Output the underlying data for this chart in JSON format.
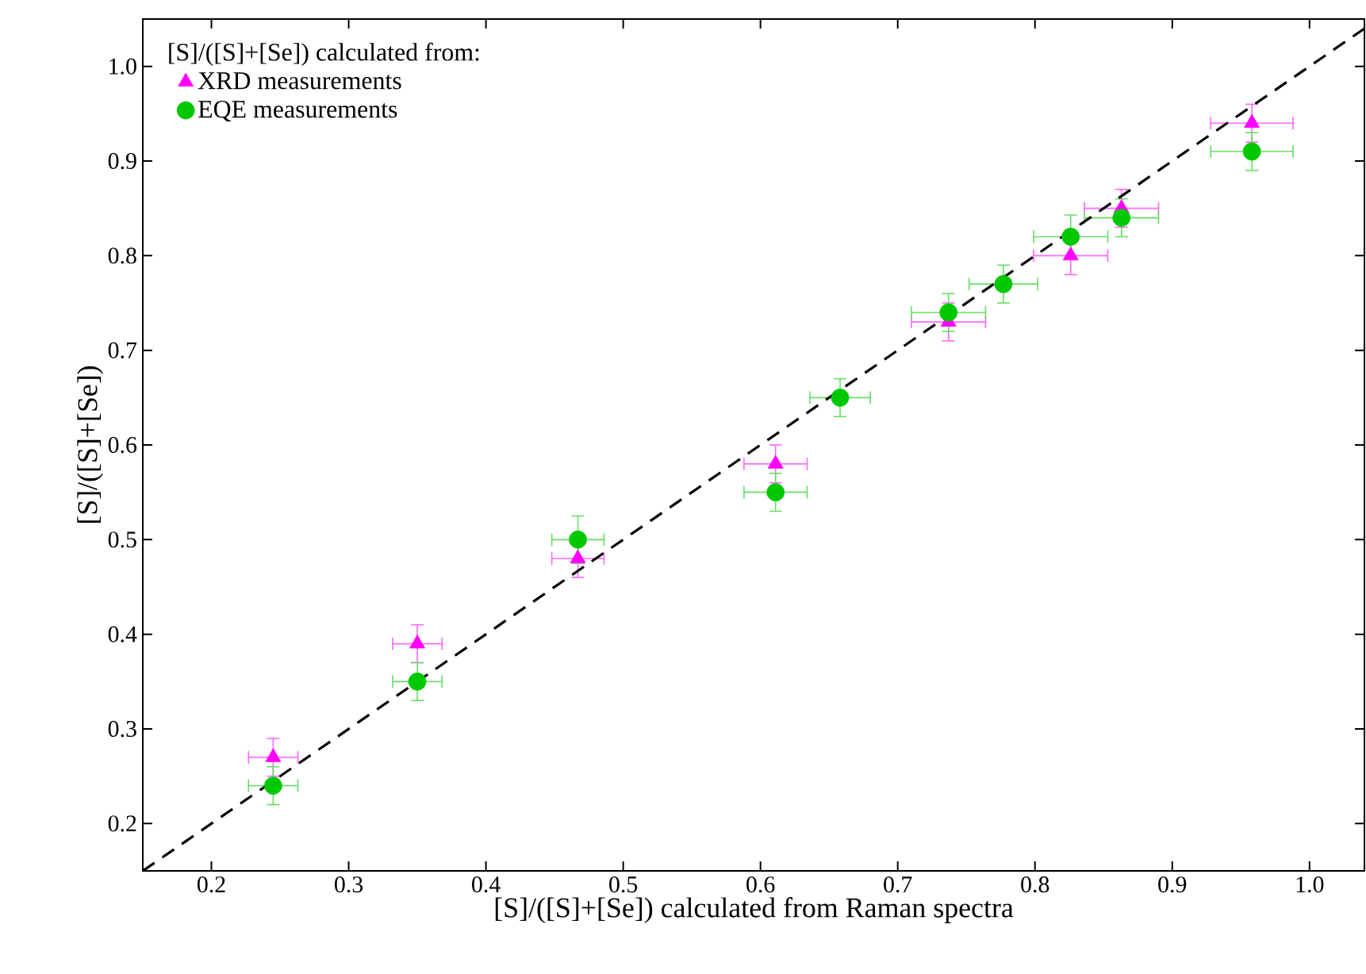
{
  "chart_data": {
    "type": "scatter",
    "xlabel": "[S]/([S]+[Se]) calculated from Raman spectra",
    "ylabel": "[S]/([S]+[Se])",
    "legend_title": "[S]/([S]+[Se]) calculated from:",
    "x": [
      0.245,
      0.35,
      0.467,
      0.611,
      0.658,
      0.737,
      0.777,
      0.826,
      0.863,
      0.958
    ],
    "series": [
      {
        "name": "XRD measurements",
        "color": "#ff00ff",
        "marker": "triangle",
        "values": [
          0.27,
          0.39,
          0.48,
          0.58,
          null,
          0.73,
          null,
          0.8,
          0.85,
          0.94
        ],
        "errors": [
          0.02,
          0.02,
          0.02,
          0.02,
          null,
          0.02,
          null,
          0.02,
          0.02,
          0.02
        ],
        "xerrors": [
          0.018,
          0.018,
          0.019,
          0.023,
          null,
          0.027,
          null,
          0.027,
          0.027,
          0.03
        ]
      },
      {
        "name": "EQE measurements",
        "color": "#00c800",
        "marker": "circle",
        "values": [
          0.24,
          0.35,
          0.5,
          0.55,
          0.65,
          0.74,
          0.77,
          0.82,
          0.84,
          0.91
        ],
        "errors": [
          0.02,
          0.02,
          0.025,
          0.02,
          0.02,
          0.02,
          0.02,
          0.023,
          0.02,
          0.02
        ],
        "xerrors": [
          0.018,
          0.018,
          0.019,
          0.023,
          0.022,
          0.027,
          0.025,
          0.027,
          0.027,
          0.03
        ]
      },
      {
        "type": "line",
        "color": "#000000",
        "line_style": "dashed",
        "marker": "none",
        "x": [
          0.15,
          1.04
        ],
        "values": [
          0.15,
          1.04
        ]
      }
    ],
    "xlim": [
      0.15,
      1.04
    ],
    "ylim": [
      0.15,
      1.05
    ],
    "xticks": [
      0.2,
      0.3,
      0.4,
      0.5,
      0.6,
      0.7,
      0.8,
      0.9,
      {
        "value": 1.0,
        "label": "1.0"
      }
    ],
    "yticks": [
      0.2,
      0.3,
      0.4,
      0.5,
      0.6,
      0.7,
      0.8,
      0.9,
      {
        "value": 1.0,
        "label": "1.0"
      }
    ],
    "grid": false,
    "legend": "top left"
  }
}
